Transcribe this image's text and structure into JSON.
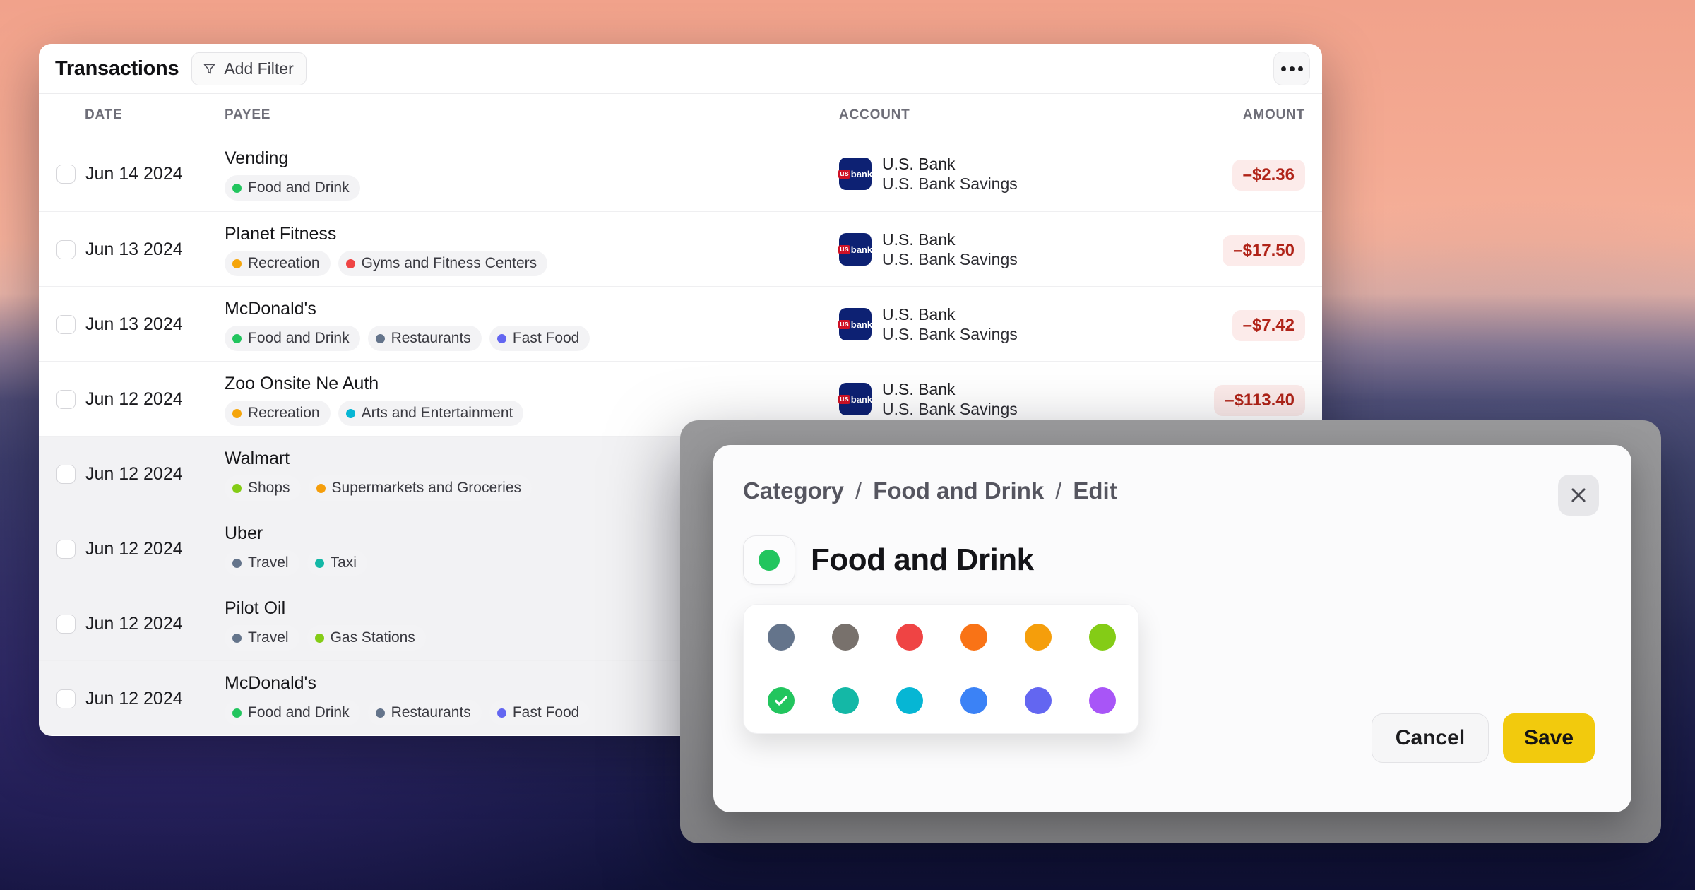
{
  "window": {
    "title": "Transactions",
    "add_filter_label": "Add Filter",
    "more_icon": "ellipsis-icon",
    "columns": {
      "date": "DATE",
      "payee": "PAYEE",
      "account": "ACCOUNT",
      "amount": "AMOUNT"
    },
    "bank_logo": {
      "us": "us",
      "bank": "bank"
    },
    "rows": [
      {
        "date": "Jun 14 2024",
        "payee": "Vending",
        "tags": [
          {
            "label": "Food and Drink",
            "dot": "#22c55e"
          }
        ],
        "account_name": "U.S. Bank",
        "account_sub": "U.S. Bank Savings",
        "amount": "–$2.36",
        "dimmed": false
      },
      {
        "date": "Jun 13 2024",
        "payee": "Planet Fitness",
        "tags": [
          {
            "label": "Recreation",
            "dot": "#f5a50b"
          },
          {
            "label": "Gyms and Fitness Centers",
            "dot": "#ef4444"
          }
        ],
        "account_name": "U.S. Bank",
        "account_sub": "U.S. Bank Savings",
        "amount": "–$17.50",
        "dimmed": false
      },
      {
        "date": "Jun 13 2024",
        "payee": "McDonald's",
        "tags": [
          {
            "label": "Food and Drink",
            "dot": "#22c55e"
          },
          {
            "label": "Restaurants",
            "dot": "#64748b"
          },
          {
            "label": "Fast Food",
            "dot": "#6366f1"
          }
        ],
        "account_name": "U.S. Bank",
        "account_sub": "U.S. Bank Savings",
        "amount": "–$7.42",
        "dimmed": false
      },
      {
        "date": "Jun 12 2024",
        "payee": "Zoo Onsite Ne Auth",
        "tags": [
          {
            "label": "Recreation",
            "dot": "#f5a50b"
          },
          {
            "label": "Arts and Entertainment",
            "dot": "#06b6d4"
          }
        ],
        "account_name": "U.S. Bank",
        "account_sub": "U.S. Bank Savings",
        "amount": "–$113.40",
        "dimmed": false
      },
      {
        "date": "Jun 12 2024",
        "payee": "Walmart",
        "tags": [
          {
            "label": "Shops",
            "dot": "#84cc16"
          },
          {
            "label": "Supermarkets and Groceries",
            "dot": "#f59e0b"
          }
        ],
        "account_name": null,
        "account_sub": null,
        "amount": null,
        "dimmed": true
      },
      {
        "date": "Jun 12 2024",
        "payee": "Uber",
        "tags": [
          {
            "label": "Travel",
            "dot": "#64748b"
          },
          {
            "label": "Taxi",
            "dot": "#14b8a6"
          }
        ],
        "account_name": null,
        "account_sub": null,
        "amount": null,
        "dimmed": true
      },
      {
        "date": "Jun 12 2024",
        "payee": "Pilot Oil",
        "tags": [
          {
            "label": "Travel",
            "dot": "#64748b"
          },
          {
            "label": "Gas Stations",
            "dot": "#84cc16"
          }
        ],
        "account_name": null,
        "account_sub": null,
        "amount": null,
        "dimmed": true
      },
      {
        "date": "Jun 12 2024",
        "payee": "McDonald's",
        "tags": [
          {
            "label": "Food and Drink",
            "dot": "#22c55e"
          },
          {
            "label": "Restaurants",
            "dot": "#64748b"
          },
          {
            "label": "Fast Food",
            "dot": "#6366f1"
          }
        ],
        "account_name": null,
        "account_sub": null,
        "amount": null,
        "dimmed": true
      }
    ]
  },
  "modal": {
    "breadcrumb": [
      "Category",
      "Food and Drink",
      "Edit"
    ],
    "breadcrumb_separator": "/",
    "close_icon": "x-icon",
    "title": "Food and Drink",
    "title_dot_color": "#22c55e",
    "swatches": [
      {
        "color": "#64748b",
        "selected": false
      },
      {
        "color": "#78716c",
        "selected": false
      },
      {
        "color": "#ef4444",
        "selected": false
      },
      {
        "color": "#f97316",
        "selected": false
      },
      {
        "color": "#f59e0b",
        "selected": false
      },
      {
        "color": "#84cc16",
        "selected": false
      },
      {
        "color": "#22c55e",
        "selected": true
      },
      {
        "color": "#14b8a6",
        "selected": false
      },
      {
        "color": "#06b6d4",
        "selected": false
      },
      {
        "color": "#3b82f6",
        "selected": false
      },
      {
        "color": "#6366f1",
        "selected": false
      },
      {
        "color": "#a855f7",
        "selected": false
      }
    ],
    "cancel_label": "Cancel",
    "save_label": "Save"
  },
  "colors": {
    "save_button": "#f2ca0d",
    "amount_text": "#b02318",
    "amount_pill_bg": "#fcebea",
    "bank_icon_bg": "#0d2173",
    "bank_badge_red": "#cf1226",
    "backdrop_gray": "#8c8c8e"
  }
}
